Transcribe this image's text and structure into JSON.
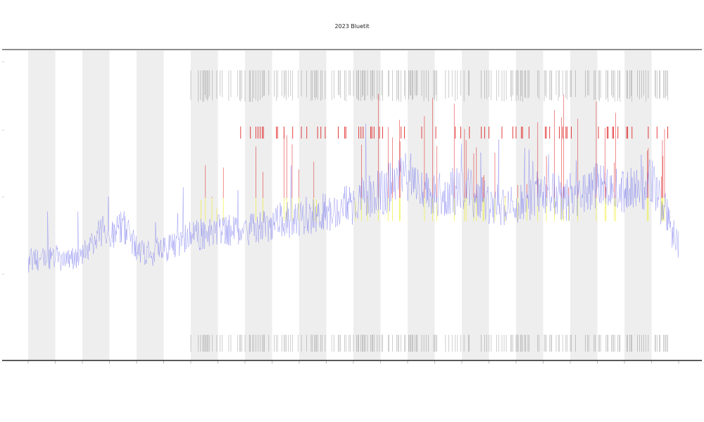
{
  "chart_data": {
    "type": "line",
    "title": "2023 Bluetit",
    "xlabel": "",
    "ylabel": "",
    "legend_label": "",
    "x_tick_labels": [
      "",
      "",
      "",
      "",
      "",
      "",
      "",
      "",
      "",
      "",
      "",
      "",
      "",
      "",
      "",
      "",
      "",
      "",
      "",
      "",
      "",
      "",
      "",
      "",
      ""
    ],
    "y_tick_labels": [
      "",
      "",
      "",
      ""
    ],
    "grid": false,
    "shaded_bands": [
      [
        0,
        1
      ],
      [
        2,
        3
      ],
      [
        4,
        5
      ],
      [
        6,
        7
      ],
      [
        8,
        9
      ],
      [
        10,
        11
      ],
      [
        12,
        13
      ],
      [
        14,
        15
      ],
      [
        16,
        17
      ],
      [
        18,
        19
      ],
      [
        20,
        21
      ],
      [
        22,
        23
      ]
    ],
    "event_band_start": 6,
    "series_envelope": [
      {
        "x": 0.0,
        "y": 0.15
      },
      {
        "x": 1.0,
        "y": 0.16
      },
      {
        "x": 1.5,
        "y": 0.15
      },
      {
        "x": 2.0,
        "y": 0.17
      },
      {
        "x": 2.7,
        "y": 0.28
      },
      {
        "x": 3.0,
        "y": 0.24
      },
      {
        "x": 3.5,
        "y": 0.3
      },
      {
        "x": 4.0,
        "y": 0.2
      },
      {
        "x": 4.5,
        "y": 0.18
      },
      {
        "x": 5.0,
        "y": 0.2
      },
      {
        "x": 5.5,
        "y": 0.22
      },
      {
        "x": 6.0,
        "y": 0.26
      },
      {
        "x": 7.0,
        "y": 0.28
      },
      {
        "x": 8.0,
        "y": 0.27
      },
      {
        "x": 9.0,
        "y": 0.31
      },
      {
        "x": 10.0,
        "y": 0.34
      },
      {
        "x": 11.0,
        "y": 0.36
      },
      {
        "x": 12.0,
        "y": 0.4
      },
      {
        "x": 13.0,
        "y": 0.44
      },
      {
        "x": 14.0,
        "y": 0.52
      },
      {
        "x": 15.0,
        "y": 0.42
      },
      {
        "x": 16.0,
        "y": 0.46
      },
      {
        "x": 17.0,
        "y": 0.4
      },
      {
        "x": 18.0,
        "y": 0.38
      },
      {
        "x": 19.0,
        "y": 0.45
      },
      {
        "x": 20.0,
        "y": 0.41
      },
      {
        "x": 21.0,
        "y": 0.47
      },
      {
        "x": 22.0,
        "y": 0.44
      },
      {
        "x": 23.0,
        "y": 0.49
      },
      {
        "x": 23.5,
        "y": 0.36
      },
      {
        "x": 24.0,
        "y": 0.2
      }
    ],
    "colors": {
      "series": "#7b7bef",
      "shaded_band": "#eeeeee",
      "event_mark": "#222222",
      "high_event": "#dd1111",
      "mid_event": "#eeee22",
      "frame": "#444444"
    }
  }
}
